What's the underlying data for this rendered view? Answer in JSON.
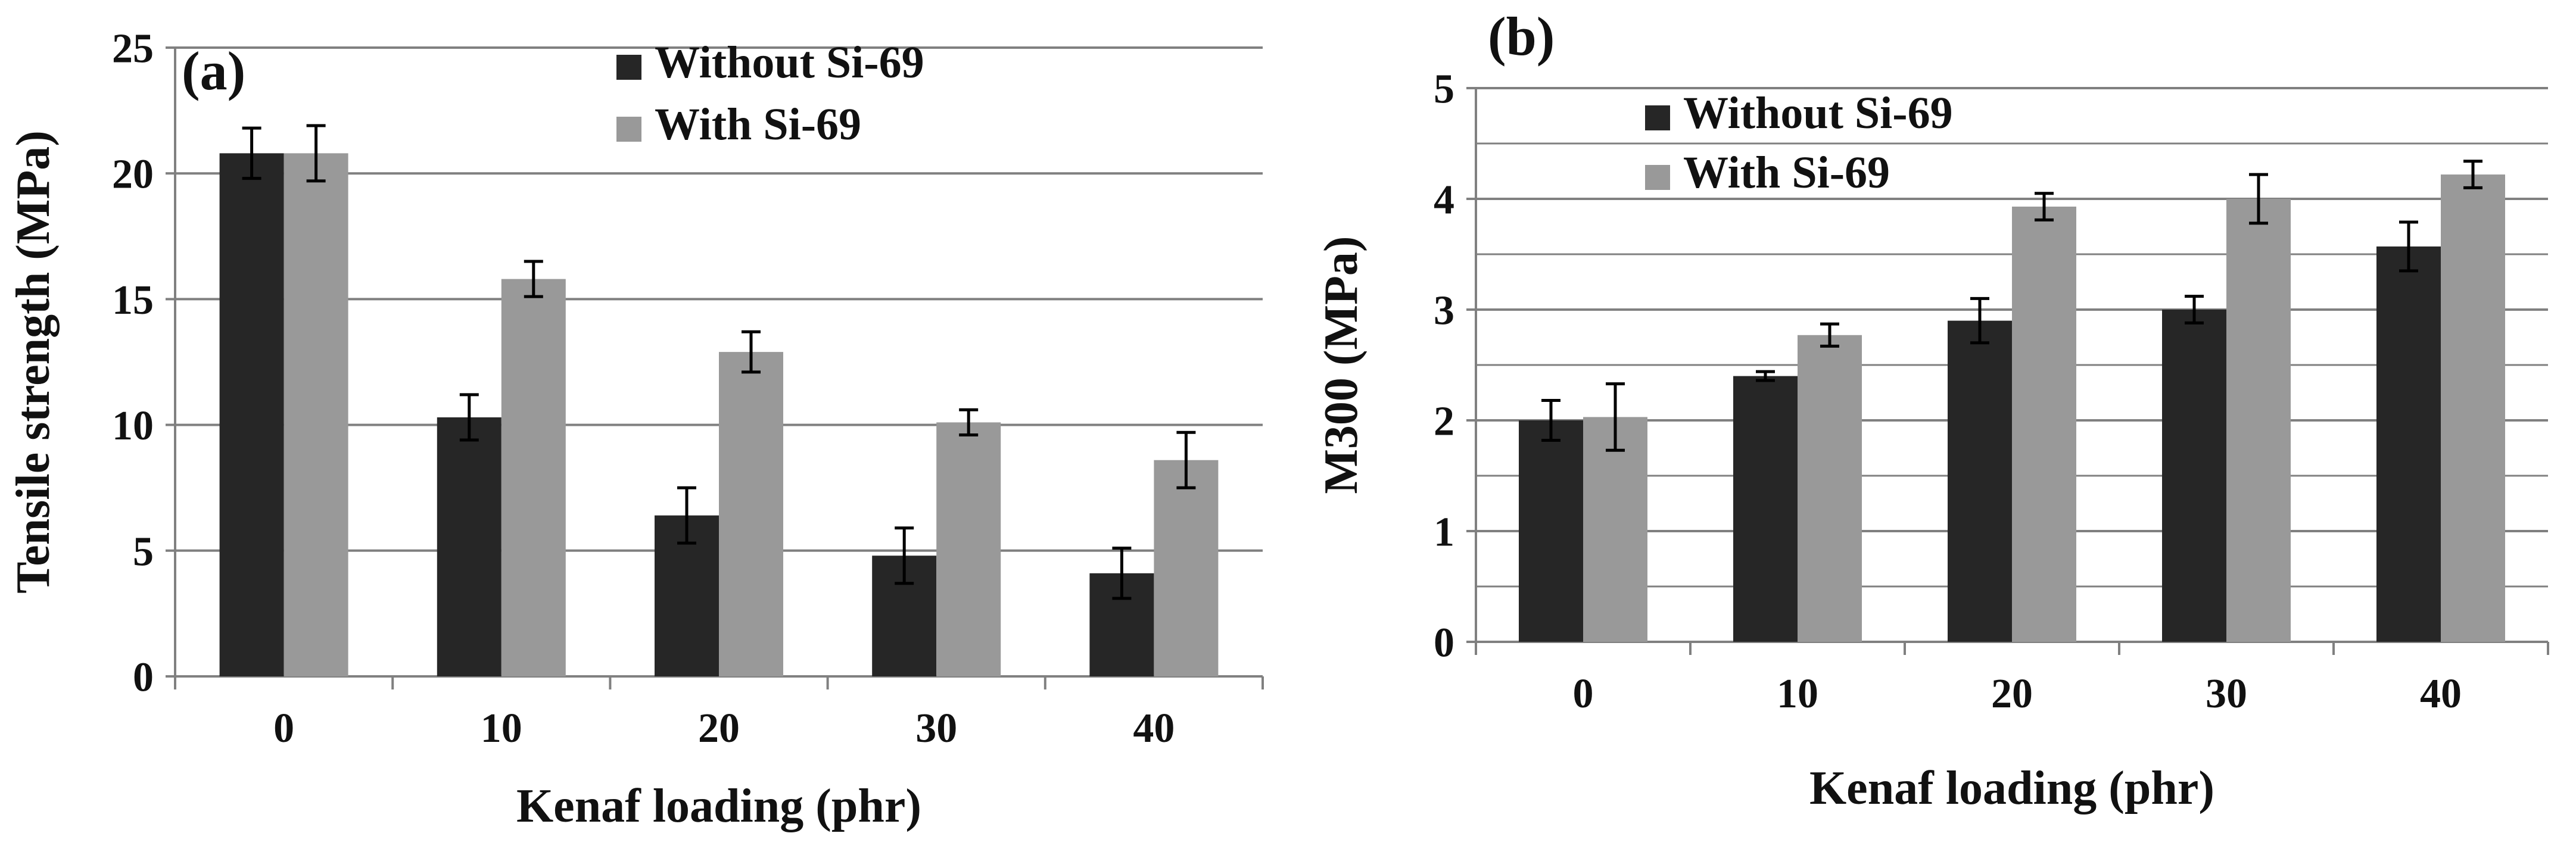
{
  "colors": {
    "dark": "#262626",
    "light": "#999999",
    "grid": "#808080",
    "axis": "#808080",
    "err": "#000000"
  },
  "chart_data": [
    {
      "type": "bar",
      "panel_label": "(a)",
      "xlabel": "Kenaf loading (phr)",
      "ylabel": "Tensile strength  (MPa)",
      "ylim": [
        0,
        25
      ],
      "yticks": [
        0,
        5,
        10,
        15,
        20,
        25
      ],
      "yticks_labels": [
        "0",
        "5",
        "10",
        "15",
        "20",
        "25"
      ],
      "categories": [
        "0",
        "10",
        "20",
        "30",
        "40"
      ],
      "grid": true,
      "legend_position": "top-right",
      "series": [
        {
          "name": "Without Si-69",
          "values": [
            20.8,
            10.3,
            6.4,
            4.8,
            4.1
          ],
          "errors": [
            1.0,
            0.9,
            1.1,
            1.1,
            1.0
          ]
        },
        {
          "name": "With Si-69",
          "values": [
            20.8,
            15.8,
            12.9,
            10.1,
            8.6
          ],
          "errors": [
            1.1,
            0.7,
            0.8,
            0.5,
            1.1
          ]
        }
      ]
    },
    {
      "type": "bar",
      "panel_label": "(b)",
      "xlabel": "Kenaf loading (phr)",
      "ylabel": "M300 (MPa)",
      "ylim": [
        0,
        5
      ],
      "yticks": [
        0,
        1,
        2,
        3,
        4,
        5
      ],
      "yticks_labels": [
        "0",
        "1",
        "2",
        "3",
        "4",
        "5"
      ],
      "minor_grid_step": 0.5,
      "categories": [
        "0",
        "10",
        "20",
        "30",
        "40"
      ],
      "grid": true,
      "legend_position": "top-left",
      "series": [
        {
          "name": "Without Si-69",
          "values": [
            2.0,
            2.4,
            2.9,
            3.0,
            3.57
          ],
          "errors": [
            0.18,
            0.04,
            0.2,
            0.12,
            0.22
          ]
        },
        {
          "name": "With Si-69",
          "values": [
            2.03,
            2.77,
            3.93,
            4.0,
            4.22
          ],
          "errors": [
            0.3,
            0.1,
            0.12,
            0.22,
            0.12
          ]
        }
      ]
    }
  ]
}
